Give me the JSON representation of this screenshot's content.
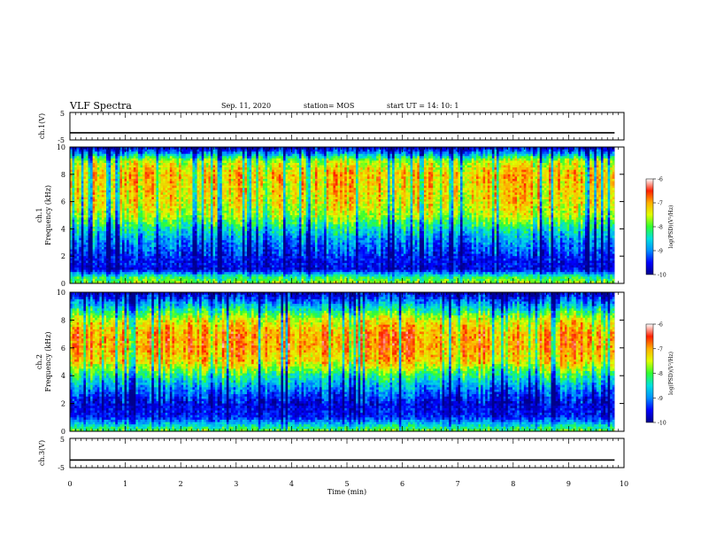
{
  "header": {
    "title": "VLF Spectra",
    "date": "Sep. 11, 2020",
    "station": "station= MOS",
    "start": "start  UT =   14: 10: 1"
  },
  "chart_data": [
    {
      "type": "line",
      "panel": "ch1-waveform",
      "ylabel": "ch.1(V)",
      "ylim": [
        -5,
        5
      ],
      "yticks": [
        "5",
        "-5"
      ],
      "x": [
        0,
        9.83
      ],
      "values": [
        -2.4,
        -2.4
      ]
    },
    {
      "type": "heatmap",
      "panel": "ch1-spectrogram",
      "ylabel": "ch.1\nFrequency (kHz)",
      "ylabel_top": "ch.1",
      "ylabel_bottom": "Frequency (kHz)",
      "ylim": [
        0,
        10
      ],
      "yticks": [
        "0",
        "2",
        "4",
        "6",
        "8",
        "10"
      ],
      "xlim": [
        0,
        9.83
      ],
      "colorbar": {
        "label": "log(PSD)(V²/Hz)",
        "range": [
          -10,
          -6
        ],
        "ticks": [
          "-6",
          "-7",
          "-8",
          "-9",
          "-10"
        ]
      },
      "profile_freq_khz": [
        0,
        0.5,
        1,
        2,
        3,
        4,
        5,
        6,
        7,
        8,
        9,
        9.5,
        10
      ],
      "profile_log_psd": [
        -7.6,
        -8.2,
        -9.6,
        -9.4,
        -9.0,
        -8.4,
        -7.6,
        -7.3,
        -7.2,
        -7.1,
        -7.6,
        -8.8,
        -9.8
      ]
    },
    {
      "type": "heatmap",
      "panel": "ch2-spectrogram",
      "ylabel": "ch.2\nFrequency (kHz)",
      "ylabel_top": "ch.2",
      "ylabel_bottom": "Frequency (kHz)",
      "ylim": [
        0,
        10
      ],
      "yticks": [
        "0",
        "2",
        "4",
        "6",
        "8",
        "10"
      ],
      "xlim": [
        0,
        9.83
      ],
      "colorbar": {
        "label": "log(PSD)(V²/Hz)",
        "range": [
          -10,
          -6
        ],
        "ticks": [
          "-6",
          "-7",
          "-8",
          "-9",
          "-10"
        ]
      },
      "profile_freq_khz": [
        0,
        0.5,
        1,
        2,
        3,
        4,
        5,
        6,
        7,
        8,
        9,
        9.5,
        10
      ],
      "profile_log_psd": [
        -7.8,
        -8.6,
        -9.4,
        -9.6,
        -9.0,
        -8.2,
        -7.2,
        -6.9,
        -6.9,
        -7.4,
        -8.6,
        -9.2,
        -9.8
      ]
    },
    {
      "type": "line",
      "panel": "ch3-waveform",
      "ylabel": "ch.3(V)",
      "ylim": [
        -5,
        5
      ],
      "yticks": [
        "5",
        "-5"
      ],
      "x": [
        0,
        9.83
      ],
      "values": [
        -2.4,
        -2.4
      ]
    }
  ],
  "x_axis": {
    "label": "Time (min)",
    "ticks": [
      "0",
      "1",
      "2",
      "3",
      "4",
      "5",
      "6",
      "7",
      "8",
      "9",
      "10"
    ],
    "xlim": [
      0,
      10
    ]
  },
  "colors": {
    "colormap": [
      "#00008c",
      "#0000ff",
      "#0090ff",
      "#00e0e0",
      "#30ff30",
      "#e0ff00",
      "#ffb000",
      "#ff2000",
      "#ffffff"
    ],
    "line": "#000000"
  }
}
